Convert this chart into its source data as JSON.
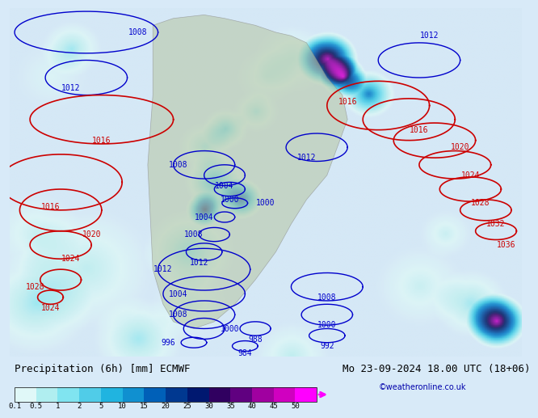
{
  "title_left": "Precipitation (6h) [mm] ECMWF",
  "title_right": "Mo 23-09-2024 18.00 UTC (18+06)",
  "subtitle_right": "©weatheronline.co.uk",
  "colorbar_labels": [
    "0.1",
    "0.5",
    "1",
    "2",
    "5",
    "10",
    "15",
    "20",
    "25",
    "30",
    "35",
    "40",
    "45",
    "50"
  ],
  "colorbar_colors": [
    "#e0f8f8",
    "#b0eef0",
    "#80e4f0",
    "#50cce8",
    "#20b4e0",
    "#1090d0",
    "#0060b8",
    "#003890",
    "#001870",
    "#300060",
    "#600080",
    "#a000a0",
    "#d000c0",
    "#ff00ff"
  ],
  "background_color": "#d8eaf8",
  "map_bg": "#c8dff0",
  "font_color": "#000000",
  "label_fontsize": 9,
  "title_fontsize": 9
}
